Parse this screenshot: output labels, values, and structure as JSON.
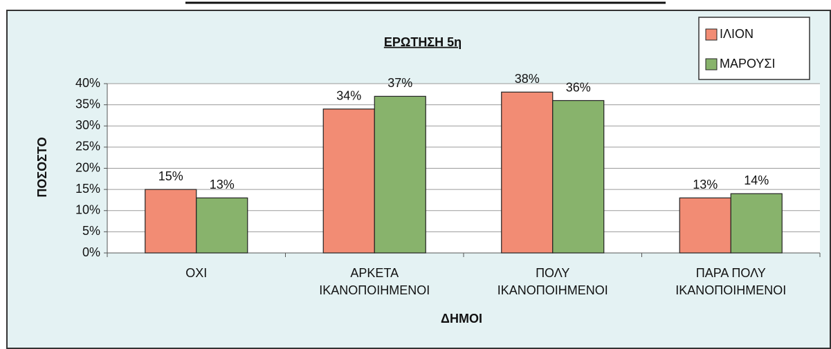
{
  "chart_data": {
    "type": "bar",
    "title": "ΕΡΩΤΗΣΗ 5η",
    "categories": [
      "ΟΧΙ",
      "ΑΡΚΕΤΑ\nΙΚΑΝΟΠΟΙΗΜΕΝΟΙ",
      "ΠΟΛΥ\nΙΚΑΝΟΠΟΙΗΜΕΝΟΙ",
      "ΠΑΡΑ ΠΟΛΥ\nΙΚΑΝΟΠΟΙΗΜΕΝΟΙ"
    ],
    "series": [
      {
        "name": "ΙΛΙΟΝ",
        "color": "#f28c74",
        "values": [
          15,
          34,
          38,
          13
        ],
        "value_labels": [
          "15%",
          "34%",
          "38%",
          "13%"
        ]
      },
      {
        "name": "ΜΑΡΟΥΣΙ",
        "color": "#88b36c",
        "values": [
          13,
          37,
          36,
          14
        ],
        "value_labels": [
          "13%",
          "37%",
          "36%",
          "14%"
        ]
      }
    ],
    "xlabel": "ΔΗΜΟΙ",
    "ylabel": "ΠΟΣΟΣΤΟ",
    "ylim": [
      0,
      40
    ],
    "yticks": [
      {
        "value": 0,
        "label": "0%"
      },
      {
        "value": 5,
        "label": "5%"
      },
      {
        "value": 10,
        "label": "10%"
      },
      {
        "value": 15,
        "label": "15%"
      },
      {
        "value": 20,
        "label": "20%"
      },
      {
        "value": 25,
        "label": "25%"
      },
      {
        "value": 30,
        "label": "30%"
      },
      {
        "value": 35,
        "label": "35%"
      },
      {
        "value": 40,
        "label": "40%"
      }
    ],
    "grid": true,
    "legend": "top-right"
  }
}
